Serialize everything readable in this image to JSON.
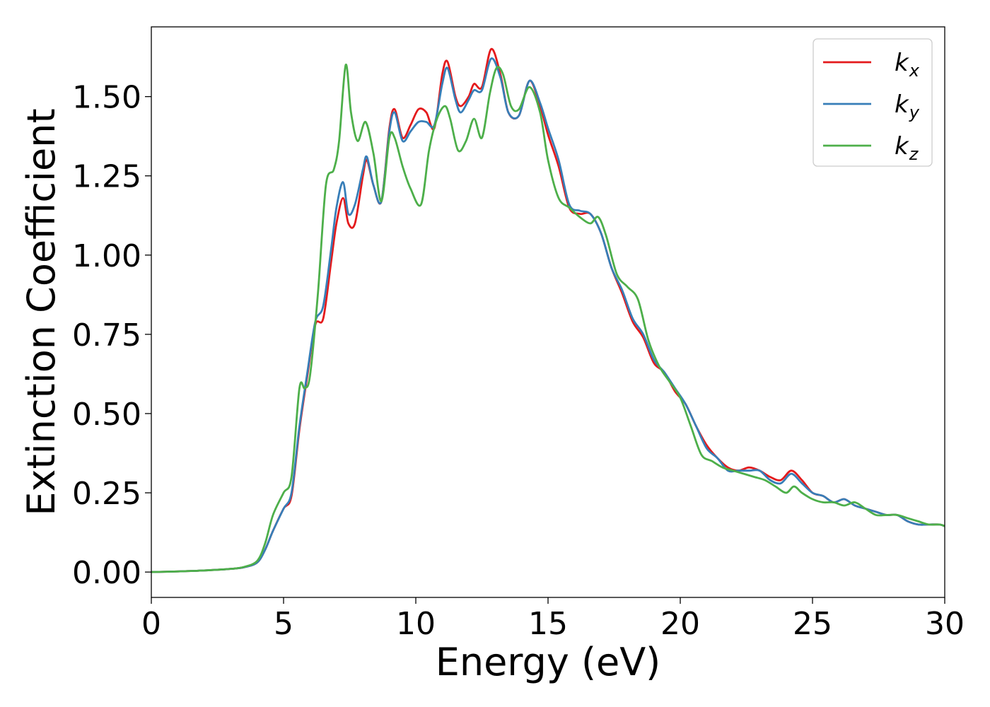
{
  "chart_data": {
    "type": "line",
    "title": "",
    "xlabel": "Energy (eV)",
    "ylabel": "Extinction Coefficient",
    "xlim": [
      0,
      30
    ],
    "ylim": [
      -0.08,
      1.72
    ],
    "xticks": [
      0,
      5,
      10,
      15,
      20,
      25,
      30
    ],
    "yticks": [
      0.0,
      0.25,
      0.5,
      0.75,
      1.0,
      1.25,
      1.5
    ],
    "xtick_labels": [
      "0",
      "5",
      "10",
      "15",
      "20",
      "25",
      "30"
    ],
    "ytick_labels": [
      "0.00",
      "0.25",
      "0.50",
      "0.75",
      "1.00",
      "1.25",
      "1.50"
    ],
    "grid": false,
    "legend_position": "top-right",
    "series": [
      {
        "name": "k",
        "subscript": "x",
        "color": "#e41a1c",
        "x": [
          0,
          1,
          2,
          3,
          3.5,
          4,
          4.3,
          4.6,
          5.0,
          5.3,
          5.6,
          5.9,
          6.2,
          6.5,
          6.8,
          7.0,
          7.25,
          7.45,
          7.7,
          8.0,
          8.15,
          8.4,
          8.7,
          9.0,
          9.2,
          9.5,
          9.8,
          10.1,
          10.4,
          10.7,
          11.0,
          11.2,
          11.5,
          11.7,
          12.0,
          12.2,
          12.5,
          12.85,
          13.2,
          13.5,
          13.9,
          14.3,
          14.7,
          15.0,
          15.4,
          15.8,
          16.2,
          16.6,
          17.0,
          17.4,
          17.8,
          18.2,
          18.6,
          19.0,
          19.4,
          19.8,
          20.2,
          20.6,
          21.0,
          21.4,
          21.8,
          22.2,
          22.6,
          23.0,
          23.4,
          23.8,
          24.2,
          24.6,
          25.0,
          25.4,
          25.8,
          26.2,
          26.6,
          27.0,
          27.4,
          27.8,
          28.2,
          28.6,
          29.0,
          29.4,
          29.8,
          30
        ],
        "y": [
          0.0,
          0.002,
          0.005,
          0.01,
          0.015,
          0.03,
          0.07,
          0.13,
          0.2,
          0.24,
          0.45,
          0.62,
          0.78,
          0.8,
          0.98,
          1.1,
          1.18,
          1.1,
          1.1,
          1.25,
          1.3,
          1.22,
          1.17,
          1.4,
          1.46,
          1.37,
          1.41,
          1.46,
          1.45,
          1.4,
          1.57,
          1.61,
          1.5,
          1.47,
          1.5,
          1.54,
          1.53,
          1.65,
          1.57,
          1.45,
          1.44,
          1.55,
          1.47,
          1.38,
          1.28,
          1.15,
          1.13,
          1.13,
          1.07,
          0.96,
          0.88,
          0.79,
          0.74,
          0.66,
          0.63,
          0.57,
          0.53,
          0.46,
          0.4,
          0.36,
          0.33,
          0.32,
          0.33,
          0.32,
          0.3,
          0.29,
          0.32,
          0.29,
          0.25,
          0.24,
          0.22,
          0.23,
          0.21,
          0.2,
          0.19,
          0.18,
          0.18,
          0.16,
          0.15,
          0.15,
          0.15,
          0.145
        ]
      },
      {
        "name": "k",
        "subscript": "y",
        "color": "#377eb8",
        "x": [
          0,
          1,
          2,
          3,
          3.5,
          4,
          4.3,
          4.6,
          5.0,
          5.3,
          5.6,
          5.9,
          6.2,
          6.5,
          6.8,
          7.0,
          7.25,
          7.45,
          7.7,
          8.0,
          8.15,
          8.4,
          8.7,
          9.0,
          9.2,
          9.5,
          9.8,
          10.1,
          10.4,
          10.7,
          11.0,
          11.2,
          11.5,
          11.7,
          12.0,
          12.2,
          12.5,
          12.85,
          13.2,
          13.5,
          13.9,
          14.3,
          14.7,
          15.0,
          15.4,
          15.8,
          16.2,
          16.6,
          17.0,
          17.4,
          17.8,
          18.2,
          18.6,
          19.0,
          19.4,
          19.8,
          20.2,
          20.6,
          21.0,
          21.4,
          21.8,
          22.2,
          22.6,
          23.0,
          23.4,
          23.8,
          24.2,
          24.6,
          25.0,
          25.4,
          25.8,
          26.2,
          26.6,
          27.0,
          27.4,
          27.8,
          28.2,
          28.6,
          29.0,
          29.4,
          29.8,
          30
        ],
        "y": [
          0.0,
          0.002,
          0.005,
          0.01,
          0.015,
          0.03,
          0.07,
          0.13,
          0.2,
          0.25,
          0.46,
          0.63,
          0.79,
          0.84,
          1.02,
          1.15,
          1.23,
          1.13,
          1.16,
          1.27,
          1.31,
          1.22,
          1.17,
          1.39,
          1.45,
          1.36,
          1.39,
          1.42,
          1.42,
          1.41,
          1.54,
          1.59,
          1.49,
          1.45,
          1.49,
          1.52,
          1.52,
          1.62,
          1.56,
          1.45,
          1.44,
          1.55,
          1.48,
          1.4,
          1.3,
          1.16,
          1.14,
          1.13,
          1.07,
          0.96,
          0.89,
          0.8,
          0.75,
          0.67,
          0.63,
          0.58,
          0.53,
          0.46,
          0.39,
          0.36,
          0.32,
          0.32,
          0.32,
          0.32,
          0.29,
          0.28,
          0.31,
          0.28,
          0.25,
          0.24,
          0.22,
          0.23,
          0.21,
          0.2,
          0.19,
          0.18,
          0.18,
          0.16,
          0.15,
          0.15,
          0.15,
          0.145
        ]
      },
      {
        "name": "k",
        "subscript": "z",
        "color": "#4daf4a",
        "x": [
          0,
          1,
          2,
          3,
          3.5,
          4,
          4.3,
          4.6,
          5.0,
          5.3,
          5.6,
          5.8,
          6.0,
          6.3,
          6.6,
          6.9,
          7.1,
          7.35,
          7.55,
          7.8,
          8.1,
          8.4,
          8.7,
          9.0,
          9.2,
          9.5,
          9.8,
          10.2,
          10.5,
          10.8,
          11.1,
          11.3,
          11.6,
          11.9,
          12.2,
          12.5,
          12.8,
          13.05,
          13.3,
          13.6,
          13.9,
          14.3,
          14.7,
          15.0,
          15.4,
          15.8,
          16.2,
          16.6,
          16.9,
          17.2,
          17.6,
          18.0,
          18.4,
          18.8,
          19.2,
          19.6,
          20.0,
          20.4,
          20.8,
          21.2,
          21.6,
          22.0,
          22.4,
          22.8,
          23.2,
          23.6,
          24.0,
          24.3,
          24.6,
          25.0,
          25.4,
          25.8,
          26.2,
          26.6,
          27.0,
          27.4,
          27.8,
          28.2,
          28.6,
          29.0,
          29.4,
          29.8,
          30
        ],
        "y": [
          0.0,
          0.002,
          0.005,
          0.01,
          0.016,
          0.035,
          0.09,
          0.18,
          0.25,
          0.3,
          0.58,
          0.58,
          0.62,
          0.88,
          1.22,
          1.27,
          1.36,
          1.6,
          1.45,
          1.36,
          1.42,
          1.32,
          1.17,
          1.37,
          1.37,
          1.28,
          1.21,
          1.16,
          1.33,
          1.43,
          1.47,
          1.43,
          1.33,
          1.36,
          1.43,
          1.37,
          1.51,
          1.59,
          1.57,
          1.47,
          1.46,
          1.53,
          1.45,
          1.3,
          1.18,
          1.15,
          1.12,
          1.1,
          1.12,
          1.06,
          0.94,
          0.9,
          0.86,
          0.73,
          0.65,
          0.6,
          0.55,
          0.46,
          0.37,
          0.35,
          0.33,
          0.32,
          0.31,
          0.3,
          0.29,
          0.27,
          0.25,
          0.27,
          0.25,
          0.23,
          0.22,
          0.22,
          0.21,
          0.22,
          0.2,
          0.18,
          0.18,
          0.18,
          0.17,
          0.16,
          0.15,
          0.15,
          0.145
        ]
      }
    ]
  }
}
